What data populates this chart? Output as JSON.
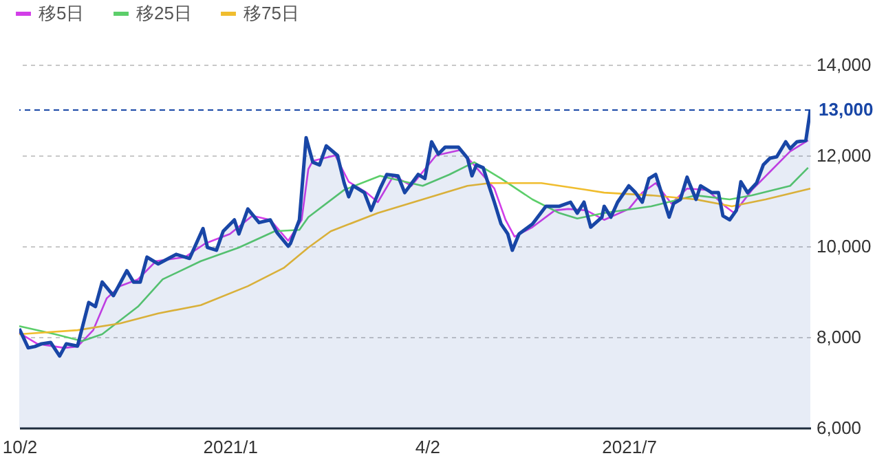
{
  "chart_data": {
    "type": "line",
    "legend": "top left",
    "grid": "y",
    "line_style": "solid",
    "marker": "none",
    "xlim": [
      "2020-10-02",
      "2021-09-20"
    ],
    "xticks": [
      {
        "value": "2020-10-02",
        "label": "10/2"
      },
      {
        "value": "2021-01-04",
        "label": "2021/1"
      },
      {
        "value": "2021-04-02",
        "label": "4/2"
      },
      {
        "value": "2021-07-01",
        "label": "2021/7"
      }
    ],
    "ylim": [
      6000,
      14000
    ],
    "yticks": [
      {
        "value": 6000,
        "label": "6,000"
      },
      {
        "value": 8000,
        "label": "8,000"
      },
      {
        "value": 10000,
        "label": "10,000"
      },
      {
        "value": 12000,
        "label": "12,000"
      },
      {
        "value": 14000,
        "label": "14,000"
      }
    ],
    "ref_lines": [
      {
        "axis": "y",
        "value": 13000,
        "label": "13,000",
        "color": "#1846a6",
        "line_style": "dashed"
      }
    ],
    "series": [
      {
        "type": "area",
        "color": "#1846a6",
        "x": [
          "2020-10-02",
          "2020-10-06",
          "2020-10-09",
          "2020-10-12",
          "2020-10-16",
          "2020-10-20",
          "2020-10-23",
          "2020-10-28",
          "2020-11-02",
          "2020-11-05",
          "2020-11-08",
          "2020-11-13",
          "2020-11-19",
          "2020-11-22",
          "2020-11-25",
          "2020-11-28",
          "2020-12-03",
          "2020-12-11",
          "2020-12-17",
          "2020-12-23",
          "2020-12-25",
          "2020-12-29",
          "2021-01-01",
          "2021-01-06",
          "2021-01-08",
          "2021-01-12",
          "2021-01-17",
          "2021-01-22",
          "2021-01-25",
          "2021-01-30",
          "2021-01-31",
          "2021-02-04",
          "2021-02-07",
          "2021-02-10",
          "2021-02-13",
          "2021-02-16",
          "2021-02-21",
          "2021-02-24",
          "2021-02-26",
          "2021-02-28",
          "2021-03-05",
          "2021-03-08",
          "2021-03-12",
          "2021-03-15",
          "2021-03-20",
          "2021-03-23",
          "2021-03-29",
          "2021-04-01",
          "2021-04-04",
          "2021-04-07",
          "2021-04-10",
          "2021-04-16",
          "2021-04-20",
          "2021-04-22",
          "2021-04-24",
          "2021-04-27",
          "2021-04-29",
          "2021-05-02",
          "2021-05-05",
          "2021-05-08",
          "2021-05-10",
          "2021-05-13",
          "2021-05-19",
          "2021-05-25",
          "2021-05-31",
          "2021-06-05",
          "2021-06-08",
          "2021-06-11",
          "2021-06-14",
          "2021-06-19",
          "2021-06-20",
          "2021-06-23",
          "2021-06-26",
          "2021-07-01",
          "2021-07-04",
          "2021-07-07",
          "2021-07-10",
          "2021-07-13",
          "2021-07-19",
          "2021-07-21",
          "2021-07-24",
          "2021-07-27",
          "2021-07-28",
          "2021-07-31",
          "2021-08-02",
          "2021-08-07",
          "2021-08-10",
          "2021-08-12",
          "2021-08-15",
          "2021-08-18",
          "2021-08-20",
          "2021-08-23",
          "2021-08-27",
          "2021-08-30",
          "2021-09-02",
          "2021-09-05",
          "2021-09-09",
          "2021-09-11",
          "2021-09-14",
          "2021-09-18",
          "2021-09-20"
        ],
        "values": [
          8180,
          7760,
          7790,
          7850,
          7880,
          7580,
          7850,
          7800,
          8760,
          8670,
          9210,
          8910,
          9460,
          9210,
          9210,
          9760,
          9610,
          9820,
          9730,
          10390,
          9970,
          9910,
          10330,
          10580,
          10270,
          10820,
          10520,
          10580,
          10300,
          10000,
          10060,
          10580,
          12390,
          11850,
          11790,
          12210,
          12000,
          11390,
          11090,
          11330,
          11180,
          10790,
          11270,
          11580,
          11550,
          11180,
          11580,
          11490,
          12300,
          12030,
          12180,
          12180,
          11940,
          11550,
          11790,
          11730,
          11420,
          10970,
          10490,
          10270,
          9910,
          10270,
          10490,
          10880,
          10880,
          10970,
          10730,
          10970,
          10420,
          10640,
          10880,
          10640,
          10970,
          11330,
          11180,
          10970,
          11490,
          11580,
          10640,
          10940,
          11030,
          11520,
          11390,
          11030,
          11330,
          11180,
          11180,
          10670,
          10580,
          10790,
          11420,
          11180,
          11390,
          11790,
          11940,
          11970,
          12300,
          12150,
          12300,
          12330,
          13000
        ]
      },
      {
        "name": "移5日",
        "type": "line",
        "color": "#d23ee8",
        "x": [
          "2020-10-02",
          "2020-10-10",
          "2020-10-22",
          "2020-10-28",
          "2020-11-04",
          "2020-11-10",
          "2020-11-16",
          "2020-11-24",
          "2020-12-02",
          "2020-12-15",
          "2020-12-24",
          "2021-01-04",
          "2021-01-14",
          "2021-01-22",
          "2021-01-30",
          "2021-02-05",
          "2021-02-08",
          "2021-02-10",
          "2021-02-20",
          "2021-02-26",
          "2021-03-06",
          "2021-03-11",
          "2021-03-18",
          "2021-03-26",
          "2021-04-06",
          "2021-04-17",
          "2021-04-24",
          "2021-05-02",
          "2021-05-07",
          "2021-05-11",
          "2021-05-19",
          "2021-05-29",
          "2021-06-04",
          "2021-06-12",
          "2021-06-20",
          "2021-07-01",
          "2021-07-07",
          "2021-07-13",
          "2021-07-20",
          "2021-07-27",
          "2021-08-05",
          "2021-08-13",
          "2021-08-17",
          "2021-08-25",
          "2021-09-02",
          "2021-09-11",
          "2021-09-18",
          "2021-09-19"
        ],
        "values": [
          8090,
          7850,
          7760,
          7790,
          8150,
          8850,
          9120,
          9270,
          9670,
          9760,
          10060,
          10270,
          10670,
          10580,
          10120,
          10580,
          11700,
          11880,
          12000,
          11420,
          11180,
          10970,
          11550,
          11330,
          12000,
          12120,
          11730,
          11270,
          10580,
          10210,
          10420,
          10790,
          10820,
          10790,
          10580,
          10820,
          11180,
          11390,
          10940,
          11270,
          11240,
          10880,
          10730,
          11240,
          11640,
          12090,
          12300,
          12330
        ]
      },
      {
        "name": "移25日",
        "type": "line",
        "color": "#5cce6a",
        "x": [
          "2020-10-02",
          "2020-10-18",
          "2020-10-30",
          "2020-11-08",
          "2020-11-24",
          "2020-12-05",
          "2020-12-22",
          "2021-01-08",
          "2021-01-24",
          "2021-02-04",
          "2021-02-08",
          "2021-02-24",
          "2021-03-12",
          "2021-03-31",
          "2021-04-12",
          "2021-04-23",
          "2021-05-05",
          "2021-05-19",
          "2021-05-31",
          "2021-06-08",
          "2021-06-20",
          "2021-07-11",
          "2021-07-31",
          "2021-08-15",
          "2021-08-25",
          "2021-09-11",
          "2021-09-19"
        ],
        "values": [
          8240,
          8060,
          7910,
          8060,
          8670,
          9270,
          9670,
          9970,
          10330,
          10360,
          10640,
          11240,
          11550,
          11330,
          11580,
          11850,
          11490,
          11030,
          10730,
          10610,
          10730,
          10880,
          11120,
          11030,
          11120,
          11330,
          11730
        ]
      },
      {
        "name": "移75日",
        "type": "line",
        "color": "#f0bd2e",
        "x": [
          "2020-10-02",
          "2020-10-28",
          "2020-11-16",
          "2020-12-03",
          "2020-12-22",
          "2021-01-12",
          "2021-01-28",
          "2021-02-08",
          "2021-02-18",
          "2021-03-11",
          "2021-03-31",
          "2021-04-20",
          "2021-04-30",
          "2021-05-23",
          "2021-06-11",
          "2021-06-20",
          "2021-07-11",
          "2021-07-31",
          "2021-08-16",
          "2021-08-31",
          "2021-09-20"
        ],
        "values": [
          8060,
          8150,
          8300,
          8520,
          8700,
          9120,
          9520,
          9970,
          10330,
          10730,
          11030,
          11330,
          11390,
          11390,
          11250,
          11180,
          11120,
          11030,
          10880,
          11030,
          11270
        ]
      }
    ]
  }
}
